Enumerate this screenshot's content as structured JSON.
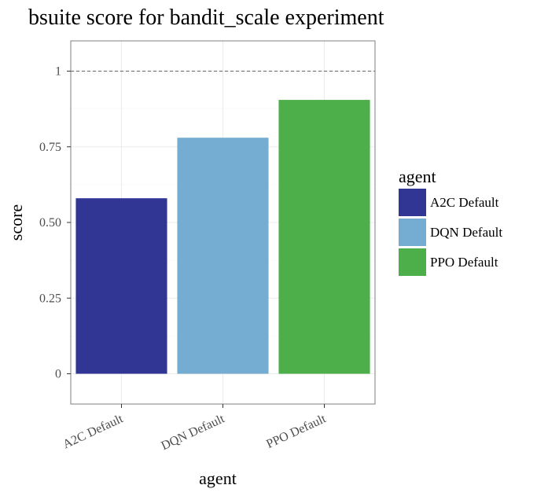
{
  "chart_data": {
    "type": "bar",
    "title": "bsuite score for bandit_scale experiment",
    "xlabel": "agent",
    "ylabel": "score",
    "categories": [
      "A2C Default",
      "DQN Default",
      "PPO Default"
    ],
    "values": [
      0.58,
      0.78,
      0.905
    ],
    "colors": [
      "#313695",
      "#74add1",
      "#4daf4a"
    ],
    "ylim": [
      -0.1,
      1.1
    ],
    "yticks": [
      0,
      0.25,
      0.5,
      0.75,
      1
    ],
    "ytick_labels": [
      "0",
      "0.25",
      "0.50",
      "0.75",
      "1"
    ],
    "reference_line": 1,
    "grid": true,
    "legend": {
      "title": "agent",
      "position": "right",
      "entries": [
        "A2C Default",
        "DQN Default",
        "PPO Default"
      ]
    }
  }
}
